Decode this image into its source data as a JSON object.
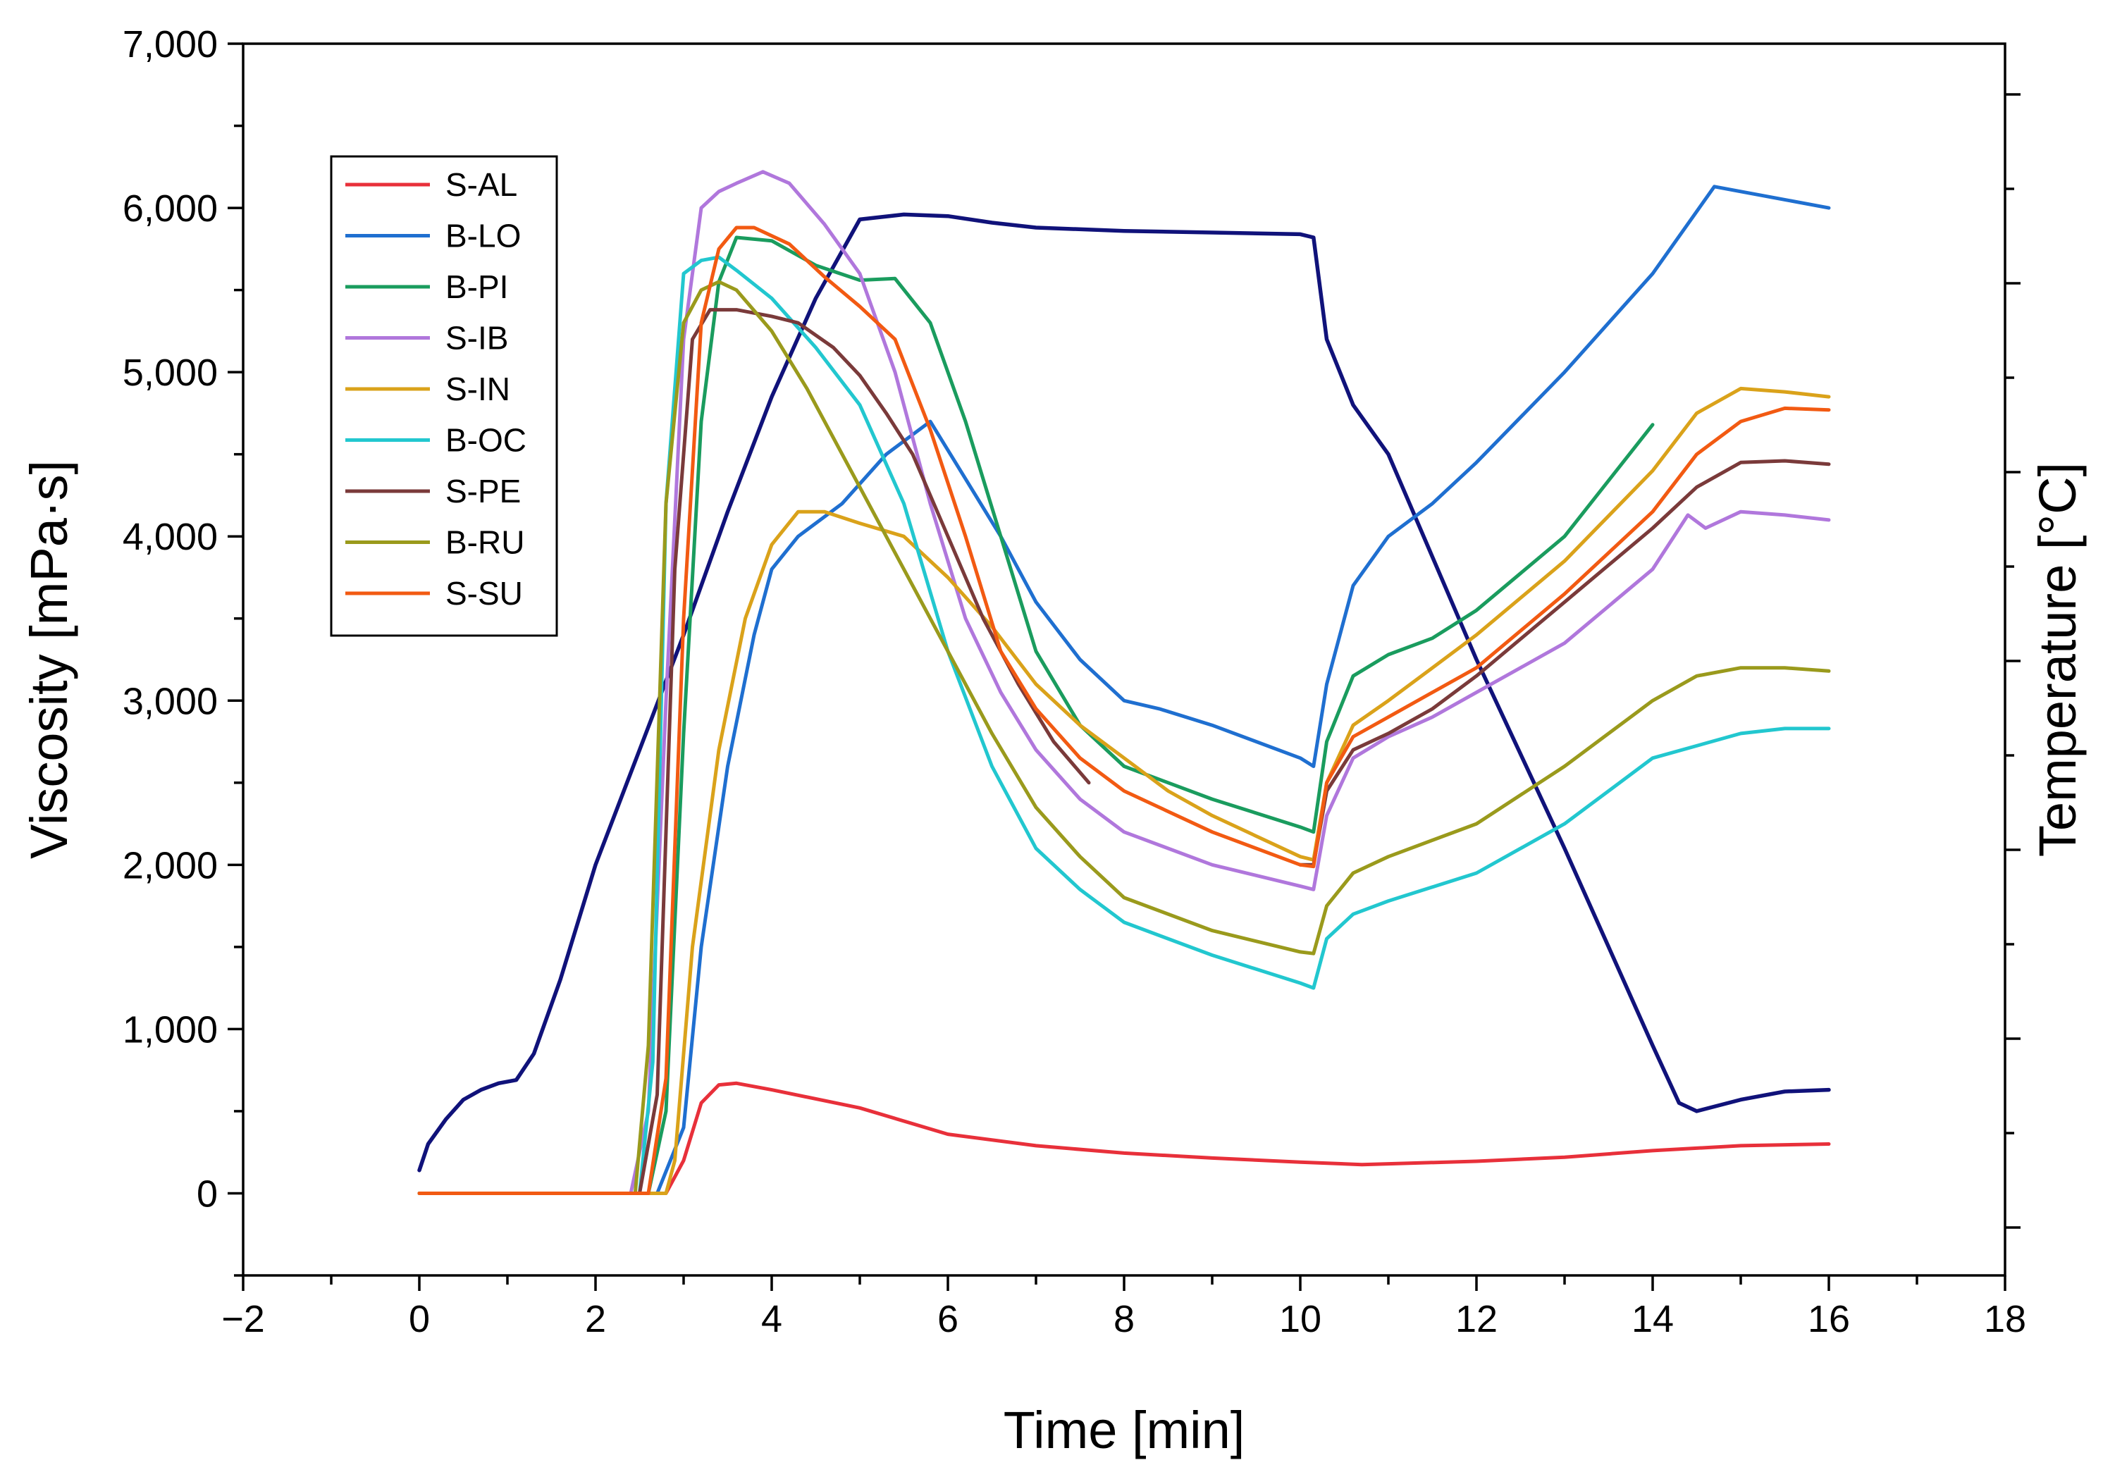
{
  "chart_data": {
    "type": "line",
    "xlabel": "Time [min]",
    "ylabel": "Viscosity [mPa·s]",
    "y2label": "Temperature [°C]",
    "xlim": [
      -2,
      18
    ],
    "ylim": [
      -500,
      7000
    ],
    "x_ticks": [
      -2,
      0,
      2,
      4,
      6,
      8,
      10,
      12,
      14,
      16,
      18
    ],
    "x_tick_labels": [
      "−2",
      "0",
      "2",
      "4",
      "6",
      "8",
      "10",
      "12",
      "14",
      "16",
      "18"
    ],
    "y_ticks": [
      0,
      1000,
      2000,
      3000,
      4000,
      5000,
      6000,
      7000
    ],
    "y_tick_labels": [
      "0",
      "1,000",
      "2,000",
      "3,000",
      "4,000",
      "5,000",
      "6,000",
      "7,000"
    ],
    "legend_position": "top-left",
    "series": [
      {
        "name": "S-AL",
        "color": "#e8303a",
        "x": [
          0,
          2.8,
          3.0,
          3.2,
          3.4,
          3.6,
          4.0,
          5.0,
          6.0,
          7.0,
          8.0,
          9.0,
          10.0,
          10.7,
          12.0,
          13.0,
          14.0,
          15.0,
          16.0
        ],
        "y": [
          0,
          0,
          200,
          550,
          660,
          670,
          630,
          520,
          360,
          290,
          245,
          215,
          190,
          175,
          195,
          220,
          260,
          290,
          300
        ]
      },
      {
        "name": "B-LO",
        "color": "#1f6fd0",
        "x": [
          0,
          2.7,
          3.0,
          3.2,
          3.5,
          3.8,
          4.0,
          4.3,
          4.8,
          5.3,
          5.8,
          6.2,
          6.6,
          7.0,
          7.5,
          8.0,
          8.4,
          9.0,
          10.0,
          10.15,
          10.3,
          10.6,
          11.0,
          11.5,
          12.0,
          13.0,
          14.0,
          14.7,
          15.0,
          15.5,
          16.0
        ],
        "y": [
          0,
          0,
          400,
          1500,
          2600,
          3400,
          3800,
          4000,
          4200,
          4500,
          4700,
          4350,
          4000,
          3600,
          3250,
          3000,
          2950,
          2850,
          2650,
          2600,
          3100,
          3700,
          4000,
          4200,
          4450,
          5000,
          5600,
          6130,
          6100,
          6050,
          6000
        ]
      },
      {
        "name": "B-PI",
        "color": "#1a9c5e",
        "x": [
          0,
          2.6,
          2.8,
          3.0,
          3.2,
          3.4,
          3.6,
          4.0,
          4.5,
          5.0,
          5.4,
          5.8,
          6.2,
          6.6,
          7.0,
          7.5,
          8.0,
          9.0,
          10.0,
          10.15,
          10.3,
          10.6,
          11.0,
          11.5,
          12.0,
          13.0,
          14.0
        ],
        "y": [
          0,
          0,
          500,
          2800,
          4700,
          5550,
          5820,
          5800,
          5650,
          5560,
          5570,
          5300,
          4700,
          4000,
          3300,
          2850,
          2600,
          2400,
          2230,
          2200,
          2750,
          3150,
          3280,
          3380,
          3550,
          4000,
          4680
        ]
      },
      {
        "name": "S-IB",
        "color": "#b077dc",
        "x": [
          0,
          2.4,
          2.6,
          2.8,
          3.0,
          3.2,
          3.4,
          3.6,
          3.9,
          4.2,
          4.6,
          5.0,
          5.4,
          5.8,
          6.2,
          6.6,
          7.0,
          7.5,
          8.0,
          9.0,
          10.0,
          10.15,
          10.3,
          10.6,
          11.0,
          11.5,
          12.0,
          13.0,
          14.0,
          14.4,
          14.6,
          15.0,
          15.5,
          16.0
        ],
        "y": [
          0,
          0,
          500,
          3000,
          5200,
          6000,
          6100,
          6150,
          6220,
          6150,
          5900,
          5600,
          5000,
          4200,
          3500,
          3050,
          2700,
          2400,
          2200,
          2000,
          1870,
          1850,
          2300,
          2650,
          2780,
          2900,
          3050,
          3350,
          3800,
          4130,
          4050,
          4150,
          4130,
          4100
        ]
      },
      {
        "name": "S-IN",
        "color": "#daa21a",
        "x": [
          0,
          2.8,
          2.9,
          3.1,
          3.4,
          3.7,
          4.0,
          4.3,
          4.6,
          5.0,
          5.5,
          6.0,
          6.5,
          7.0,
          7.5,
          8.0,
          8.5,
          9.0,
          10.0,
          10.15,
          10.3,
          10.6,
          11.0,
          11.5,
          12.0,
          13.0,
          14.0,
          14.5,
          15.0,
          15.5,
          16.0
        ],
        "y": [
          0,
          0,
          200,
          1500,
          2700,
          3500,
          3950,
          4150,
          4150,
          4080,
          4000,
          3750,
          3450,
          3100,
          2850,
          2650,
          2450,
          2300,
          2050,
          2030,
          2500,
          2850,
          3000,
          3200,
          3400,
          3850,
          4400,
          4750,
          4900,
          4880,
          4850
        ]
      },
      {
        "name": "B-OC",
        "color": "#22c7cf",
        "x": [
          0,
          2.5,
          2.65,
          2.8,
          3.0,
          3.2,
          3.4,
          3.6,
          4.0,
          4.5,
          5.0,
          5.5,
          6.0,
          6.5,
          7.0,
          7.5,
          8.0,
          9.0,
          10.0,
          10.15,
          10.3,
          10.6,
          11.0,
          12.0,
          13.0,
          14.0,
          15.0,
          15.5,
          16.0
        ],
        "y": [
          0,
          0,
          800,
          4200,
          5600,
          5680,
          5700,
          5620,
          5450,
          5150,
          4800,
          4200,
          3300,
          2600,
          2100,
          1850,
          1650,
          1450,
          1280,
          1250,
          1550,
          1700,
          1780,
          1950,
          2250,
          2650,
          2800,
          2830,
          2830
        ]
      },
      {
        "name": "S-PE",
        "color": "#7a3a3a",
        "x": [
          0,
          2.5,
          2.7,
          2.9,
          3.1,
          3.3,
          3.6,
          4.0,
          4.3,
          4.7,
          5.0,
          5.3,
          5.6,
          6.0,
          6.4,
          6.8,
          7.2,
          7.6
        ],
        "y": [
          0,
          0,
          600,
          3800,
          5200,
          5380,
          5380,
          5340,
          5300,
          5150,
          4980,
          4750,
          4500,
          4000,
          3500,
          3100,
          2750,
          2500
        ],
        "x2": [
          10.0,
          10.15,
          10.3,
          10.6,
          11.0,
          11.5,
          12.0,
          13.0,
          14.0,
          14.5,
          15.0,
          15.5,
          16.0
        ],
        "y2": [
          2000,
          2000,
          2450,
          2700,
          2800,
          2950,
          3150,
          3600,
          4050,
          4300,
          4450,
          4460,
          4440
        ]
      },
      {
        "name": "B-RU",
        "color": "#9a9a1c",
        "x": [
          0,
          2.45,
          2.6,
          2.8,
          3.0,
          3.2,
          3.4,
          3.6,
          4.0,
          4.4,
          4.8,
          5.2,
          5.6,
          6.0,
          6.5,
          7.0,
          7.5,
          8.0,
          9.0,
          10.0,
          10.15,
          10.3,
          10.6,
          11.0,
          12.0,
          13.0,
          14.0,
          14.5,
          15.0,
          15.5,
          16.0
        ],
        "y": [
          0,
          0,
          900,
          4200,
          5300,
          5500,
          5550,
          5500,
          5250,
          4900,
          4500,
          4100,
          3700,
          3300,
          2800,
          2350,
          2050,
          1800,
          1600,
          1470,
          1460,
          1750,
          1950,
          2050,
          2250,
          2600,
          3000,
          3150,
          3200,
          3200,
          3180
        ]
      },
      {
        "name": "S-SU",
        "color": "#f25a12",
        "x": [
          0,
          2.6,
          2.8,
          3.0,
          3.2,
          3.4,
          3.6,
          3.8,
          4.2,
          4.6,
          5.0,
          5.4,
          5.8,
          6.2,
          6.6,
          7.0,
          7.5,
          8.0,
          9.0,
          10.0,
          10.15,
          10.3,
          10.6,
          11.0,
          11.5,
          12.0,
          13.0,
          14.0,
          14.5,
          15.0,
          15.5,
          16.0
        ],
        "y": [
          0,
          0,
          700,
          3500,
          5300,
          5750,
          5880,
          5880,
          5780,
          5580,
          5400,
          5200,
          4650,
          4000,
          3300,
          2950,
          2650,
          2450,
          2200,
          2000,
          1990,
          2500,
          2780,
          2900,
          3050,
          3200,
          3650,
          4150,
          4500,
          4700,
          4780,
          4770
        ]
      }
    ],
    "temperature_series": {
      "name": "Temperature",
      "color": "#10127a",
      "axis": "right",
      "x": [
        0,
        0.1,
        0.3,
        0.5,
        0.7,
        0.9,
        1.1,
        1.3,
        1.6,
        2.0,
        2.5,
        3.0,
        3.5,
        4.0,
        4.5,
        5.0,
        5.5,
        6.0,
        6.5,
        7.0,
        8.0,
        9.0,
        10.0,
        10.15,
        10.3,
        10.6,
        11.0,
        12.0,
        13.0,
        14.0,
        14.3,
        14.5,
        15.0,
        15.5,
        16.0
      ],
      "y": [
        140,
        300,
        450,
        570,
        630,
        670,
        690,
        850,
        1300,
        2000,
        2700,
        3400,
        4150,
        4850,
        5450,
        5930,
        5960,
        5950,
        5910,
        5880,
        5860,
        5850,
        5840,
        5820,
        5200,
        4800,
        4500,
        3250,
        2100,
        900,
        550,
        500,
        570,
        620,
        630
      ]
    }
  }
}
